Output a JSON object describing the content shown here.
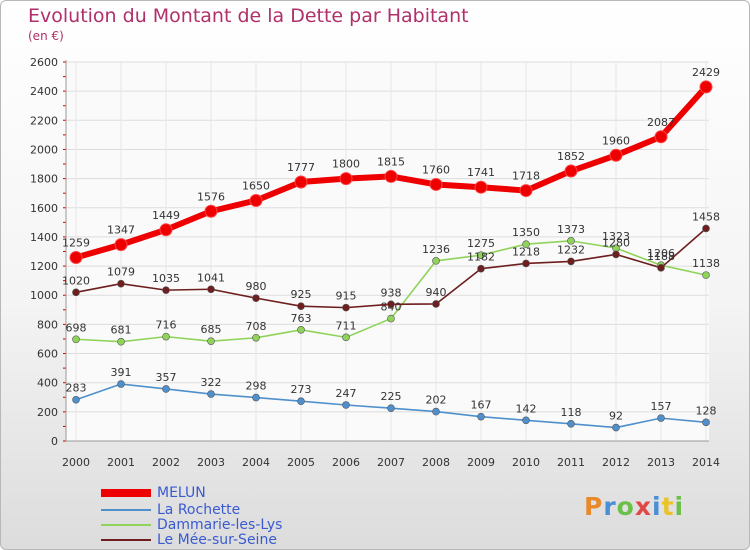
{
  "title": "Evolution du Montant de la Dette par Habitant",
  "unit": "(en €)",
  "logo": {
    "text": "Proxiti",
    "letters": [
      {
        "c": "P",
        "color": "#e8892a"
      },
      {
        "c": "r",
        "color": "#4a8fd6"
      },
      {
        "c": "o",
        "color": "#6cc04a"
      },
      {
        "c": "x",
        "color": "#e04848"
      },
      {
        "c": "i",
        "color": "#4a8fd6"
      },
      {
        "c": "t",
        "color": "#e8c42a"
      },
      {
        "c": "i",
        "color": "#6cc04a"
      }
    ]
  },
  "chart_data": {
    "type": "line",
    "title": "Evolution du Montant de la Dette par Habitant",
    "ylabel": "(en €)",
    "x": [
      "2000",
      "2001",
      "2002",
      "2003",
      "2004",
      "2005",
      "2006",
      "2007",
      "2008",
      "2009",
      "2010",
      "2011",
      "2012",
      "2013",
      "2014"
    ],
    "ylim": [
      0,
      2600
    ],
    "yticks": [
      0,
      200,
      400,
      600,
      800,
      1000,
      1200,
      1400,
      1600,
      1800,
      2000,
      2200,
      2400,
      2600
    ],
    "grid": true,
    "legend_position": "bottom-left",
    "series": [
      {
        "name": "MELUN",
        "color": "#ee0000",
        "values": [
          1259,
          1347,
          1449,
          1576,
          1650,
          1777,
          1800,
          1815,
          1760,
          1741,
          1718,
          1852,
          1960,
          2087,
          2429
        ]
      },
      {
        "name": "La Rochette",
        "color": "#4f90cc",
        "values": [
          283,
          391,
          357,
          322,
          298,
          273,
          247,
          225,
          202,
          167,
          142,
          118,
          92,
          157,
          128
        ]
      },
      {
        "name": "Dammarie-les-Lys",
        "color": "#8fd35a",
        "values": [
          698,
          681,
          716,
          685,
          708,
          763,
          711,
          840,
          1236,
          1275,
          1350,
          1373,
          1323,
          1206,
          1138
        ]
      },
      {
        "name": "Le Mée-sur-Seine",
        "color": "#6e1e1e",
        "values": [
          1020,
          1079,
          1035,
          1041,
          980,
          925,
          915,
          938,
          940,
          1182,
          1218,
          1232,
          1280,
          1188,
          1458
        ]
      }
    ],
    "label_texts": {
      "MELUN": [
        "1259",
        "1347",
        "1449",
        "1576",
        "1650",
        "1777",
        "1800",
        "1815",
        "1760",
        "1741",
        "1718",
        "1852",
        "1960",
        "2087",
        "2429"
      ],
      "La Rochette": [
        "283",
        "391",
        "357",
        "322",
        "298",
        "273",
        "247",
        "225",
        "202",
        "167",
        "142",
        "118",
        "92",
        "157",
        "128"
      ],
      "Dammarie-les-Lys": [
        "698",
        "681",
        "716",
        "685",
        "708",
        "763",
        "711",
        "840",
        "1236",
        "1275",
        "1350",
        "1373",
        "1323",
        "1206",
        "1138"
      ],
      "Le Mée-sur-Seine": [
        "1020",
        "1079",
        "1035",
        "1041",
        "980",
        "925",
        "915",
        "938",
        "940",
        "1182",
        "1218",
        "1232",
        "1280",
        "1188",
        "1458"
      ]
    }
  }
}
